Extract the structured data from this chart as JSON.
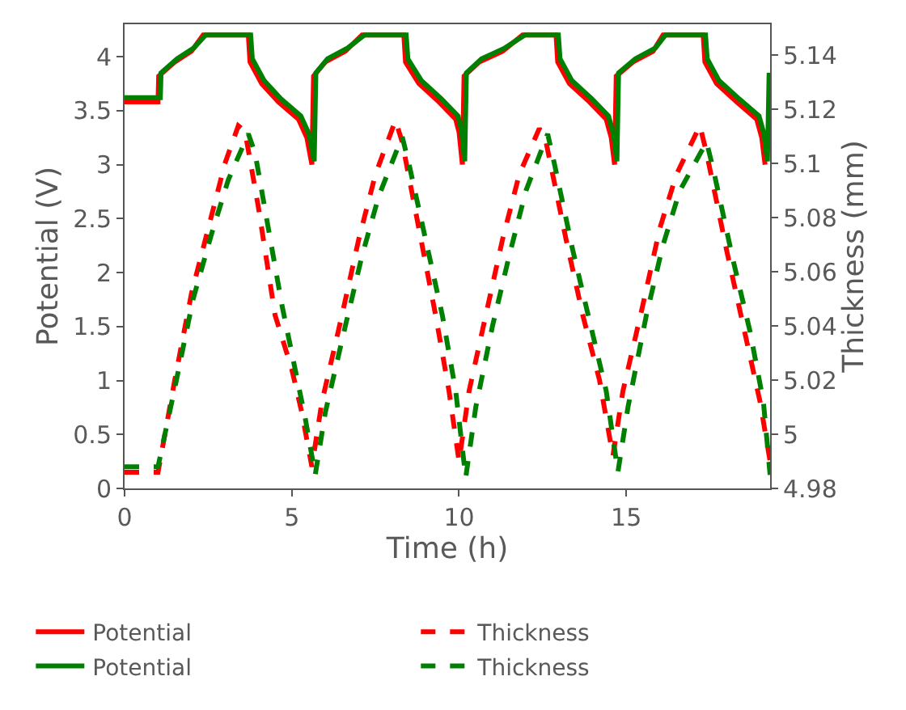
{
  "chart_data": {
    "type": "line",
    "xlabel": "Time (h)",
    "ylabel": "Potential (V)",
    "y2label": "Thickness (mm)",
    "xlim": [
      0,
      19.3
    ],
    "xticks": [
      0,
      5,
      10,
      15
    ],
    "ylim": [
      0,
      4.3
    ],
    "yticks": [
      0,
      0.5,
      1,
      1.5,
      2,
      2.5,
      3,
      3.5,
      4
    ],
    "y2lim": [
      4.98,
      5.1515
    ],
    "y2ticks": [
      4.98,
      5,
      5.02,
      5.04,
      5.06,
      5.08,
      5.1,
      5.12,
      5.14
    ],
    "legend": "bottom",
    "marker": "none",
    "series": [
      {
        "name": "Potential",
        "color": "#ff0000",
        "line_style": "solid",
        "x": [
          0,
          1,
          1.02,
          1.5,
          2.0,
          2.35,
          3.7,
          3.75,
          4.1,
          4.6,
          5.2,
          5.45,
          5.6,
          5.65,
          6.0,
          6.6,
          7.1,
          8.35,
          8.4,
          8.8,
          9.4,
          9.9,
          10.0,
          10.1,
          10.15,
          10.6,
          11.3,
          11.9,
          12.9,
          12.95,
          13.3,
          13.9,
          14.4,
          14.55,
          14.65,
          14.7,
          15.2,
          15.8,
          16.1,
          17.3,
          17.35,
          17.7,
          18.3,
          18.9,
          19.05,
          19.15
        ],
        "values": [
          3.58,
          3.58,
          3.82,
          3.95,
          4.05,
          4.2,
          4.2,
          3.95,
          3.75,
          3.58,
          3.42,
          3.25,
          3.0,
          3.82,
          3.95,
          4.05,
          4.2,
          4.2,
          3.95,
          3.75,
          3.58,
          3.42,
          3.3,
          3.0,
          3.82,
          3.95,
          4.05,
          4.2,
          4.2,
          3.95,
          3.75,
          3.58,
          3.42,
          3.25,
          3.0,
          3.82,
          3.95,
          4.05,
          4.2,
          4.2,
          3.95,
          3.75,
          3.58,
          3.42,
          3.25,
          3.0
        ]
      },
      {
        "name": "Thickness",
        "color": "#ff0000",
        "line_style": "dashed",
        "axis": "y2",
        "x": [
          0,
          1,
          1.5,
          2.0,
          2.5,
          3.0,
          3.4,
          3.6,
          4.0,
          4.5,
          5.0,
          5.3,
          5.6,
          5.9,
          6.5,
          7.0,
          7.5,
          8.1,
          8.3,
          8.8,
          9.3,
          9.7,
          10.0,
          10.3,
          10.8,
          11.3,
          11.8,
          12.4,
          12.6,
          13.2,
          13.7,
          14.2,
          14.6,
          14.9,
          15.5,
          16.0,
          16.5,
          17.2,
          17.4,
          18.0,
          18.5,
          19.0,
          19.3
        ],
        "values": [
          4.986,
          4.986,
          5.02,
          5.052,
          5.076,
          5.1,
          5.114,
          5.112,
          5.084,
          5.044,
          5.024,
          5.008,
          4.988,
          5.012,
          5.044,
          5.072,
          5.096,
          5.116,
          5.108,
          5.076,
          5.044,
          5.016,
          4.99,
          5.016,
          5.044,
          5.072,
          5.096,
          5.113,
          5.108,
          5.072,
          5.044,
          5.02,
          4.992,
          5.016,
          5.048,
          5.076,
          5.096,
          5.114,
          5.104,
          5.068,
          5.04,
          5.012,
          4.99
        ]
      },
      {
        "name": "Potential",
        "color": "#008000",
        "line_style": "solid",
        "x": [
          0,
          1.07,
          1.09,
          1.57,
          2.07,
          2.42,
          3.77,
          3.82,
          4.17,
          4.67,
          5.27,
          5.52,
          5.67,
          5.72,
          6.07,
          6.67,
          7.17,
          8.42,
          8.47,
          8.87,
          9.47,
          9.97,
          10.07,
          10.17,
          10.22,
          10.67,
          11.37,
          11.97,
          12.97,
          13.02,
          13.37,
          13.97,
          14.47,
          14.62,
          14.72,
          14.77,
          15.27,
          15.87,
          16.17,
          17.37,
          17.42,
          17.77,
          18.37,
          18.97,
          19.12,
          19.22,
          19.27
        ],
        "values": [
          3.62,
          3.62,
          3.85,
          3.98,
          4.08,
          4.2,
          4.2,
          3.98,
          3.78,
          3.61,
          3.45,
          3.28,
          3.03,
          3.85,
          3.98,
          4.08,
          4.2,
          4.2,
          3.98,
          3.78,
          3.61,
          3.45,
          3.33,
          3.03,
          3.85,
          3.98,
          4.08,
          4.2,
          4.2,
          3.98,
          3.78,
          3.61,
          3.45,
          3.28,
          3.03,
          3.85,
          3.98,
          4.08,
          4.2,
          4.2,
          3.98,
          3.78,
          3.61,
          3.45,
          3.28,
          3.03,
          3.85
        ]
      },
      {
        "name": "Thickness",
        "color": "#008000",
        "line_style": "dashed",
        "axis": "y2",
        "x": [
          0,
          1,
          1.55,
          2.05,
          2.6,
          3.1,
          3.7,
          3.9,
          4.3,
          4.7,
          5.1,
          5.4,
          5.7,
          6.0,
          6.6,
          7.1,
          7.6,
          8.3,
          8.5,
          9.0,
          9.5,
          9.9,
          10.2,
          10.5,
          11.0,
          11.5,
          12.0,
          12.65,
          12.85,
          13.4,
          13.9,
          14.4,
          14.75,
          15.05,
          15.6,
          16.1,
          16.6,
          17.4,
          17.6,
          18.2,
          18.7,
          19.1,
          19.3
        ],
        "values": [
          4.988,
          4.988,
          5.02,
          5.05,
          5.074,
          5.094,
          5.111,
          5.104,
          5.076,
          5.048,
          5.024,
          5.006,
          4.985,
          5.008,
          5.04,
          5.066,
          5.088,
          5.11,
          5.1,
          5.072,
          5.044,
          5.016,
          4.984,
          5.01,
          5.04,
          5.066,
          5.09,
          5.111,
          5.1,
          5.068,
          5.042,
          5.016,
          4.986,
          5.01,
          5.044,
          5.07,
          5.09,
          5.108,
          5.098,
          5.064,
          5.038,
          5.012,
          4.985
        ]
      }
    ]
  }
}
